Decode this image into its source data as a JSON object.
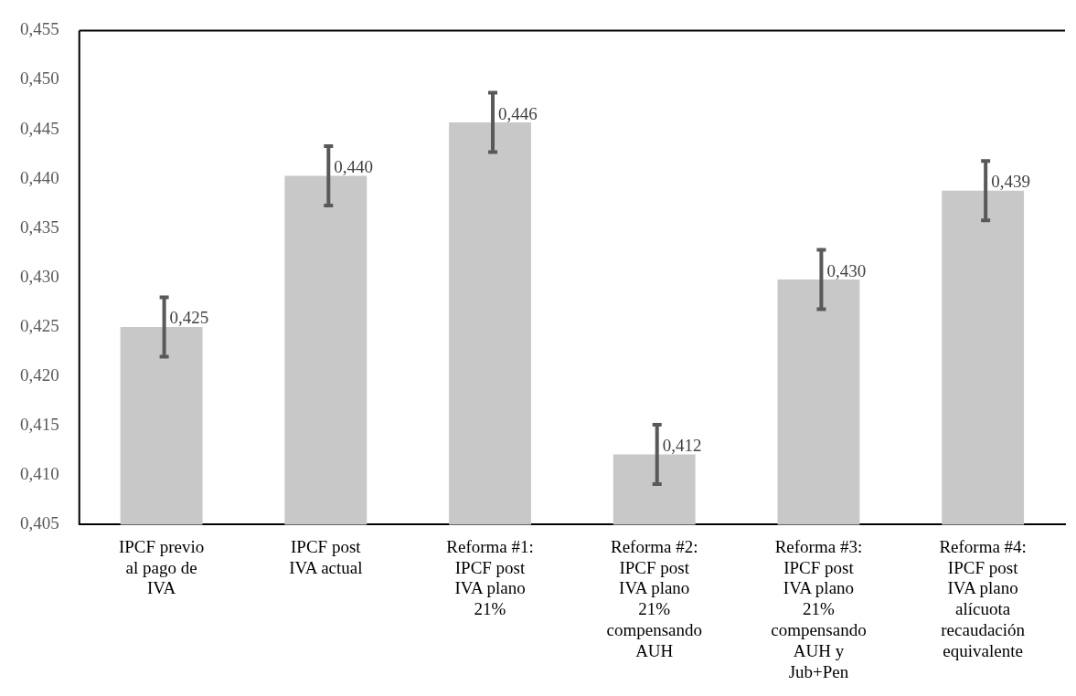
{
  "chart_data": {
    "type": "bar",
    "categories": [
      "IPCF previo al pago de IVA",
      "IPCF post IVA actual",
      "Reforma #1: IPCF post IVA plano 21%",
      "Reforma #2: IPCF post IVA plano 21% compensando AUH",
      "Reforma #3: IPCF post IVA plano 21% compensando AUH y Jub+Pen",
      "Reforma #4: IPCF post IVA plano alícuota recaudación equivalente"
    ],
    "values": [
      0.425,
      0.4403,
      0.4457,
      0.4121,
      0.4298,
      0.4388
    ],
    "errors": [
      0.003,
      0.003,
      0.003,
      0.003,
      0.003,
      0.003
    ],
    "value_labels": [
      "0,425",
      "0,440",
      "0,446",
      "0,412",
      "0,430",
      "0,439"
    ],
    "color": "#c8c8c8",
    "ylim": [
      0.405,
      0.455
    ],
    "yticks": [
      {
        "value": 0.405,
        "label": "0,405"
      },
      {
        "value": 0.41,
        "label": "0,410"
      },
      {
        "value": 0.415,
        "label": "0,415"
      },
      {
        "value": 0.42,
        "label": "0,420"
      },
      {
        "value": 0.425,
        "label": "0,425"
      },
      {
        "value": 0.43,
        "label": "0,430"
      },
      {
        "value": 0.435,
        "label": "0,435"
      },
      {
        "value": 0.44,
        "label": "0,440"
      },
      {
        "value": 0.445,
        "label": "0,445"
      },
      {
        "value": 0.45,
        "label": "0,450"
      },
      {
        "value": 0.455,
        "label": "0,455"
      }
    ],
    "grid": false,
    "legend": false
  }
}
